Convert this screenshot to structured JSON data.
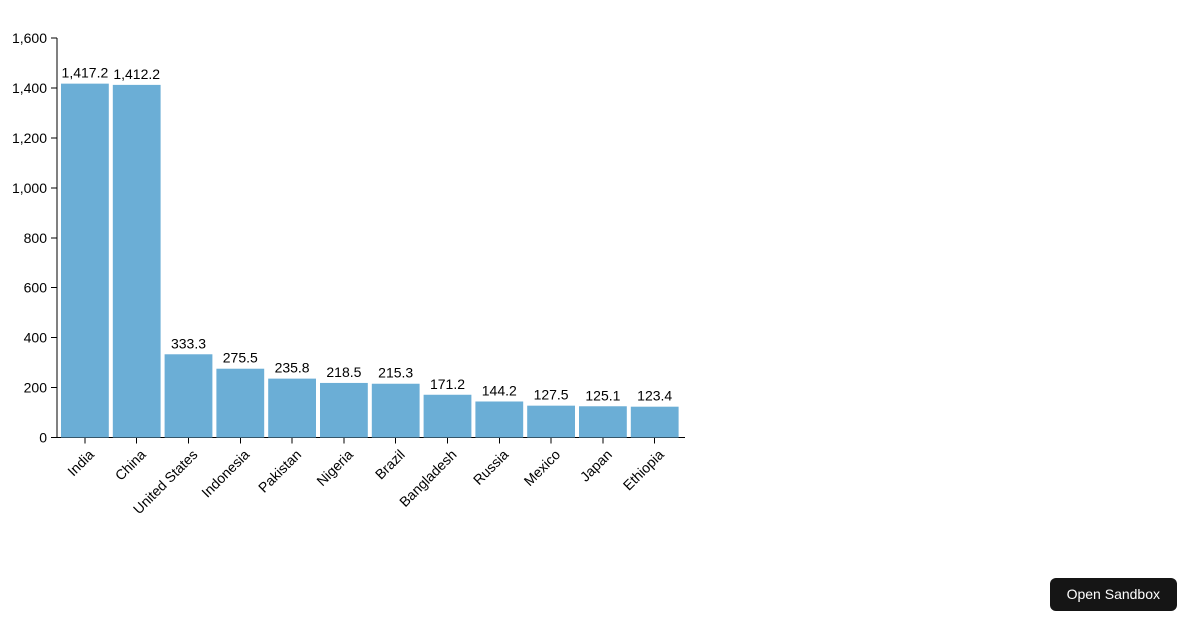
{
  "page": {
    "background": "#ffffff"
  },
  "chart_data": {
    "type": "bar",
    "categories": [
      "India",
      "China",
      "United States",
      "Indonesia",
      "Pakistan",
      "Nigeria",
      "Brazil",
      "Bangladesh",
      "Russia",
      "Mexico",
      "Japan",
      "Ethiopia"
    ],
    "values": [
      1417.2,
      1412.2,
      333.3,
      275.5,
      235.8,
      218.5,
      215.3,
      171.2,
      144.2,
      127.5,
      125.1,
      123.4
    ],
    "value_labels": [
      "1,417.2",
      "1,412.2",
      "333.3",
      "275.5",
      "235.8",
      "218.5",
      "215.3",
      "171.2",
      "144.2",
      "127.5",
      "125.1",
      "123.4"
    ],
    "title": "",
    "xlabel": "",
    "ylabel": "",
    "ylim": [
      0,
      1600
    ],
    "y_ticks": [
      0,
      200,
      400,
      600,
      800,
      1000,
      1200,
      1400,
      1600
    ],
    "y_tick_labels": [
      "0",
      "200",
      "400",
      "600",
      "800",
      "1,000",
      "1,200",
      "1,400",
      "1,600"
    ],
    "grid": false,
    "legend": false,
    "x_label_rotation": -45,
    "bar_color": "#6baed6",
    "axis_color": "#000000",
    "text_color": "#000000"
  },
  "sandbox_button": {
    "label": "Open Sandbox",
    "bg": "#151515",
    "color": "#ffffff"
  }
}
